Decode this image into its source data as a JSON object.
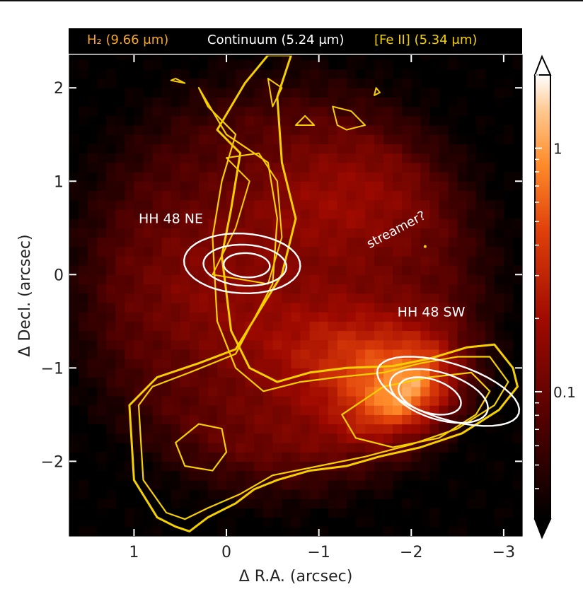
{
  "header": {
    "h2_label": "H₂ (9.66 μm)",
    "continuum_label": "Continuum (5.24 μm)",
    "feii_label": "[Fe II] (5.34 μm)",
    "colors": {
      "h2": "#f5a623",
      "continuum": "#ffffff",
      "feii": "#f5d000"
    }
  },
  "chart_data": {
    "type": "heatmap",
    "xlabel": "Δ R.A. (arcsec)",
    "ylabel": "Δ Decl. (arcsec)",
    "xlim": [
      1.7,
      -3.2
    ],
    "ylim": [
      -2.8,
      2.35
    ],
    "xticks": [
      1,
      0,
      -1,
      -2,
      -3
    ],
    "xtick_labels": [
      "1",
      "0",
      "−1",
      "−2",
      "−3"
    ],
    "yticks": [
      2,
      1,
      0,
      -1,
      -2
    ],
    "ytick_labels": [
      "2",
      "1",
      "0",
      "−1",
      "−2"
    ],
    "colormap": "afmhot",
    "colorbar": {
      "scale": "log",
      "ticks": [
        1,
        0.1
      ],
      "tick_labels": [
        "1",
        "0.1"
      ],
      "range": [
        0.03,
        2
      ],
      "extend": "both"
    },
    "grid": false,
    "annotations": [
      {
        "text": "HH 48 NE",
        "x": 0.95,
        "y": 0.55
      },
      {
        "text": "HH 48 SW",
        "x": -1.85,
        "y": -0.45
      },
      {
        "text": "streamer?",
        "x": -1.55,
        "y": 0.28
      }
    ],
    "emission_peaks": [
      {
        "name": "HH 48 NE",
        "x": -0.15,
        "y": 0.1
      },
      {
        "name": "HH 48 SW",
        "x": -2.1,
        "y": -1.35
      }
    ]
  }
}
